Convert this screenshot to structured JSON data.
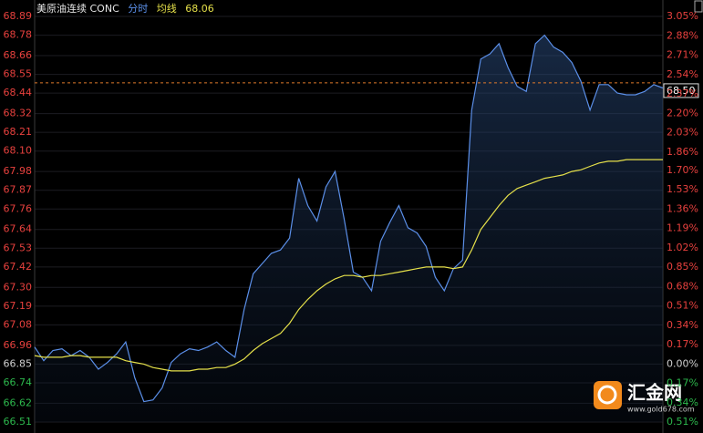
{
  "chart_data": {
    "type": "line",
    "title": "美原油连续 CONC",
    "ma_last": 68.06,
    "last_price": {
      "value": 68.5,
      "label": "68.50"
    },
    "up_color": "#e8413e",
    "down_color": "#2db84d",
    "grid": true,
    "series": [
      {
        "name": "分时",
        "color": "#5b8fe8",
        "values": [
          66.95,
          66.87,
          66.93,
          66.94,
          66.9,
          66.93,
          66.89,
          66.82,
          66.86,
          66.91,
          66.98,
          66.77,
          66.63,
          66.64,
          66.71,
          66.86,
          66.91,
          66.94,
          66.93,
          66.95,
          66.98,
          66.93,
          66.89,
          67.17,
          67.38,
          67.44,
          67.5,
          67.52,
          67.59,
          67.94,
          67.78,
          67.69,
          67.89,
          67.98,
          67.7,
          67.39,
          67.36,
          67.28,
          67.57,
          67.68,
          67.78,
          67.65,
          67.62,
          67.54,
          67.36,
          67.28,
          67.41,
          67.46,
          68.34,
          68.64,
          68.67,
          68.73,
          68.59,
          68.48,
          68.45,
          68.73,
          68.78,
          68.71,
          68.68,
          68.62,
          68.51,
          68.34,
          68.49,
          68.49,
          68.44,
          68.43,
          68.43,
          68.45,
          68.49,
          68.47
        ]
      },
      {
        "name": "均线",
        "color": "#e5e04a",
        "values": [
          66.9,
          66.89,
          66.89,
          66.89,
          66.9,
          66.9,
          66.89,
          66.89,
          66.89,
          66.89,
          66.87,
          66.86,
          66.85,
          66.83,
          66.82,
          66.81,
          66.81,
          66.81,
          66.82,
          66.82,
          66.83,
          66.83,
          66.85,
          66.88,
          66.93,
          66.97,
          67.0,
          67.03,
          67.09,
          67.17,
          67.23,
          67.28,
          67.32,
          67.35,
          67.37,
          67.37,
          67.36,
          67.37,
          67.37,
          67.38,
          67.39,
          67.4,
          67.41,
          67.42,
          67.42,
          67.42,
          67.41,
          67.42,
          67.52,
          67.64,
          67.71,
          67.78,
          67.84,
          67.88,
          67.9,
          67.92,
          67.94,
          67.95,
          67.96,
          67.98,
          67.99,
          68.01,
          68.03,
          68.04,
          68.04,
          68.05,
          68.05,
          68.05,
          68.05,
          68.05
        ]
      }
    ],
    "ylim": [
      66.51,
      68.89
    ],
    "yticks": [
      68.89,
      68.78,
      68.66,
      68.55,
      68.44,
      68.32,
      68.21,
      {
        "value": 68.1,
        "label": "68.10"
      },
      67.98,
      67.87,
      67.76,
      67.64,
      67.53,
      67.42,
      {
        "value": 67.3,
        "label": "67.30"
      },
      67.19,
      67.08,
      66.96,
      66.85,
      66.74,
      66.62,
      66.51
    ],
    "y2lim": [
      -0.51,
      3.05
    ],
    "y2ticks": [
      {
        "value": 3.05,
        "label": "3.05%"
      },
      {
        "value": 2.88,
        "label": "2.88%"
      },
      {
        "value": 2.71,
        "label": "2.71%"
      },
      {
        "value": 2.54,
        "label": "2.54%"
      },
      {
        "value": 2.37,
        "label": "2.37%"
      },
      {
        "value": 2.2,
        "label": "2.20%"
      },
      {
        "value": 2.03,
        "label": "2.03%"
      },
      {
        "value": 1.86,
        "label": "1.86%"
      },
      {
        "value": 1.7,
        "label": "1.70%"
      },
      {
        "value": 1.53,
        "label": "1.53%"
      },
      {
        "value": 1.36,
        "label": "1.36%"
      },
      {
        "value": 1.19,
        "label": "1.19%"
      },
      {
        "value": 1.02,
        "label": "1.02%"
      },
      {
        "value": 0.85,
        "label": "0.85%"
      },
      {
        "value": 0.68,
        "label": "0.68%"
      },
      {
        "value": 0.51,
        "label": "0.51%"
      },
      {
        "value": 0.34,
        "label": "0.34%"
      },
      {
        "value": 0.17,
        "label": "0.17%"
      },
      {
        "value": 0,
        "label": "0.00%"
      },
      {
        "value": -0.17,
        "label": "0.17%"
      },
      {
        "value": -0.34,
        "label": "0.34%"
      },
      {
        "value": -0.51,
        "label": "0.51%"
      }
    ]
  },
  "logo": {
    "brand": "汇金网",
    "url": "www.gold678.com"
  }
}
